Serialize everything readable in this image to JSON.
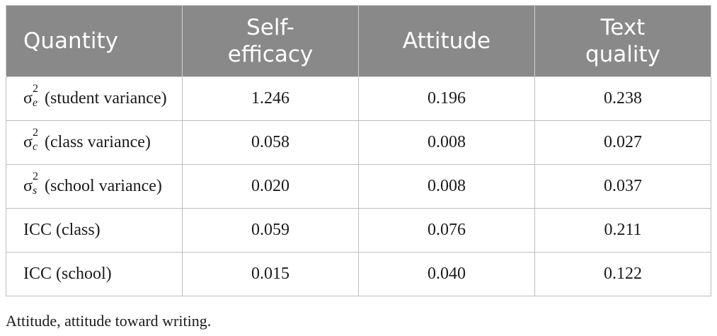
{
  "table": {
    "header": [
      "Quantity",
      "Self-efficacy",
      "Attitude",
      "Text quality"
    ],
    "rows": [
      [
        {
          "symbol": "σ",
          "sup": "2",
          "sub": "e",
          "text": "(student variance)"
        },
        "1.246",
        "0.196",
        "0.238"
      ],
      [
        {
          "symbol": "σ",
          "sup": "2",
          "sub": "c",
          "text": "(class variance)"
        },
        "0.058",
        "0.008",
        "0.027"
      ],
      [
        {
          "symbol": "σ",
          "sup": "2",
          "sub": "s",
          "text": "(school variance)"
        },
        "0.020",
        "0.008",
        "0.037"
      ],
      [
        {
          "text": "ICC (class)"
        },
        "0.059",
        "0.076",
        "0.211"
      ],
      [
        {
          "text": "ICC (school)"
        },
        "0.015",
        "0.040",
        "0.122"
      ]
    ]
  },
  "footnote": "Attitude, attitude toward writing."
}
